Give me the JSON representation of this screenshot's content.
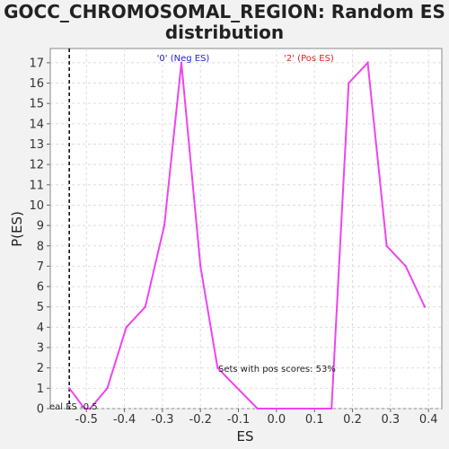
{
  "chart_data": {
    "type": "line",
    "title_line1": "GOCC_CHROMOSOMAL_REGION: Random ES",
    "title_line2": "distribution",
    "xlabel": "ES",
    "ylabel": "P(ES)",
    "xlim": [
      -0.595,
      0.435
    ],
    "ylim": [
      0,
      17.7
    ],
    "x_ticks": [
      -0.5,
      -0.4,
      -0.3,
      -0.2,
      -0.1,
      0.0,
      0.1,
      0.2,
      0.3,
      0.4
    ],
    "x_tick_labels": [
      "-0.5",
      "-0.4",
      "-0.3",
      "-0.2",
      "-0.1",
      "0.0",
      "0.1",
      "0.2",
      "0.3",
      "0.4"
    ],
    "y_ticks": [
      0,
      1,
      2,
      3,
      4,
      5,
      6,
      7,
      8,
      9,
      10,
      11,
      12,
      13,
      14,
      15,
      16,
      17
    ],
    "y_tick_labels": [
      "0",
      "1",
      "2",
      "3",
      "4",
      "5",
      "6",
      "7",
      "8",
      "9",
      "10",
      "11",
      "12",
      "13",
      "14",
      "15",
      "16",
      "17"
    ],
    "grid": true,
    "series": [
      {
        "color": "#ee44ee",
        "x": [
          -0.545,
          -0.505,
          -0.49,
          -0.445,
          -0.395,
          -0.345,
          -0.295,
          -0.25,
          -0.2,
          -0.155,
          -0.05,
          0.145,
          0.19,
          0.24,
          0.29,
          0.34,
          0.39
        ],
        "y": [
          1,
          0,
          0,
          1,
          4,
          5,
          9,
          17,
          7,
          2,
          0,
          0,
          16,
          17,
          8,
          7,
          5
        ]
      }
    ],
    "real_es": {
      "x": -0.545,
      "label": "eal ES -0.5"
    },
    "annotations": {
      "neg_label": "'0' (Neg ES)",
      "neg_color": "#2222cc",
      "pos_label": "'2' (Pos ES)",
      "pos_color": "#dd2222",
      "pos_scores_label": "Sets with pos scores: 53%"
    }
  }
}
